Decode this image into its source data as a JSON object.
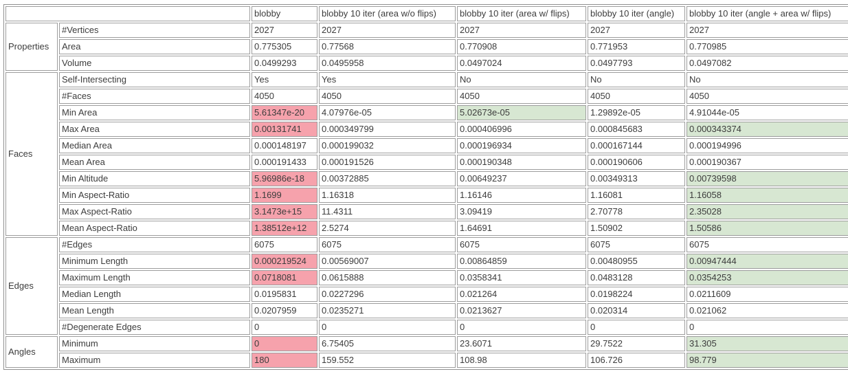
{
  "table": {
    "corner_label": "",
    "columns": [
      "blobby",
      "blobby 10 iter (area w/o flips)",
      "blobby 10 iter (area w/ flips)",
      "blobby 10 iter (angle)",
      "blobby 10 iter (angle + area w/ flips)"
    ],
    "colors": {
      "bad": "#f6a2ac",
      "good": "#d7e7d2"
    },
    "groups": [
      {
        "name": "Properties",
        "rows": [
          {
            "label": "#Vertices",
            "values": [
              "2027",
              "2027",
              "2027",
              "2027",
              "2027"
            ],
            "highlights": [
              null,
              null,
              null,
              null,
              null
            ]
          },
          {
            "label": "Area",
            "values": [
              "0.775305",
              "0.77568",
              "0.770908",
              "0.771953",
              "0.770985"
            ],
            "highlights": [
              null,
              null,
              null,
              null,
              null
            ]
          },
          {
            "label": "Volume",
            "values": [
              "0.0499293",
              "0.0495958",
              "0.0497024",
              "0.0497793",
              "0.0497082"
            ],
            "highlights": [
              null,
              null,
              null,
              null,
              null
            ]
          }
        ]
      },
      {
        "name": "Faces",
        "rows": [
          {
            "label": "Self-Intersecting",
            "values": [
              "Yes",
              "Yes",
              "No",
              "No",
              "No"
            ],
            "highlights": [
              null,
              null,
              null,
              null,
              null
            ]
          },
          {
            "label": "#Faces",
            "values": [
              "4050",
              "4050",
              "4050",
              "4050",
              "4050"
            ],
            "highlights": [
              null,
              null,
              null,
              null,
              null
            ]
          },
          {
            "label": "Min Area",
            "values": [
              "5.61347e-20",
              "4.07976e-05",
              "5.02673e-05",
              "1.29892e-05",
              "4.91044e-05"
            ],
            "highlights": [
              "bad",
              null,
              "good",
              null,
              null
            ]
          },
          {
            "label": "Max Area",
            "values": [
              "0.00131741",
              "0.000349799",
              "0.000406996",
              "0.000845683",
              "0.000343374"
            ],
            "highlights": [
              "bad",
              null,
              null,
              null,
              "good"
            ]
          },
          {
            "label": "Median Area",
            "values": [
              "0.000148197",
              "0.000199032",
              "0.000196934",
              "0.000167144",
              "0.000194996"
            ],
            "highlights": [
              null,
              null,
              null,
              null,
              null
            ]
          },
          {
            "label": "Mean Area",
            "values": [
              "0.000191433",
              "0.000191526",
              "0.000190348",
              "0.000190606",
              "0.000190367"
            ],
            "highlights": [
              null,
              null,
              null,
              null,
              null
            ]
          },
          {
            "label": "Min Altitude",
            "values": [
              "5.96986e-18",
              "0.00372885",
              "0.00649237",
              "0.00349313",
              "0.00739598"
            ],
            "highlights": [
              "bad",
              null,
              null,
              null,
              "good"
            ]
          },
          {
            "label": "Min Aspect-Ratio",
            "values": [
              "1.1699",
              "1.16318",
              "1.16146",
              "1.16081",
              "1.16058"
            ],
            "highlights": [
              "bad",
              null,
              null,
              null,
              "good"
            ]
          },
          {
            "label": "Max Aspect-Ratio",
            "values": [
              "3.1473e+15",
              "11.4311",
              "3.09419",
              "2.70778",
              "2.35028"
            ],
            "highlights": [
              "bad",
              null,
              null,
              null,
              "good"
            ]
          },
          {
            "label": "Mean Aspect-Ratio",
            "values": [
              "1.38512e+12",
              "2.5274",
              "1.64691",
              "1.50902",
              "1.50586"
            ],
            "highlights": [
              "bad",
              null,
              null,
              null,
              "good"
            ]
          }
        ]
      },
      {
        "name": "Edges",
        "rows": [
          {
            "label": "#Edges",
            "values": [
              "6075",
              "6075",
              "6075",
              "6075",
              "6075"
            ],
            "highlights": [
              null,
              null,
              null,
              null,
              null
            ]
          },
          {
            "label": "Minimum Length",
            "values": [
              "0.000219524",
              "0.00569007",
              "0.00864859",
              "0.00480955",
              "0.00947444"
            ],
            "highlights": [
              "bad",
              null,
              null,
              null,
              "good"
            ]
          },
          {
            "label": "Maximum Length",
            "values": [
              "0.0718081",
              "0.0615888",
              "0.0358341",
              "0.0483128",
              "0.0354253"
            ],
            "highlights": [
              "bad",
              null,
              null,
              null,
              "good"
            ]
          },
          {
            "label": "Median Length",
            "values": [
              "0.0195831",
              "0.0227296",
              "0.021264",
              "0.0198224",
              "0.0211609"
            ],
            "highlights": [
              null,
              null,
              null,
              null,
              null
            ]
          },
          {
            "label": "Mean Length",
            "values": [
              "0.0207959",
              "0.0235271",
              "0.0213627",
              "0.020314",
              "0.021062"
            ],
            "highlights": [
              null,
              null,
              null,
              null,
              null
            ]
          },
          {
            "label": "#Degenerate Edges",
            "values": [
              "0",
              "0",
              "0",
              "0",
              "0"
            ],
            "highlights": [
              null,
              null,
              null,
              null,
              null
            ]
          }
        ]
      },
      {
        "name": "Angles",
        "rows": [
          {
            "label": "Minimum",
            "values": [
              "0",
              "6.75405",
              "23.6071",
              "29.7522",
              "31.305"
            ],
            "highlights": [
              "bad",
              null,
              null,
              null,
              "good"
            ]
          },
          {
            "label": "Maximum",
            "values": [
              "180",
              "159.552",
              "108.98",
              "106.726",
              "98.779"
            ],
            "highlights": [
              "bad",
              null,
              null,
              null,
              "good"
            ]
          }
        ]
      }
    ]
  }
}
